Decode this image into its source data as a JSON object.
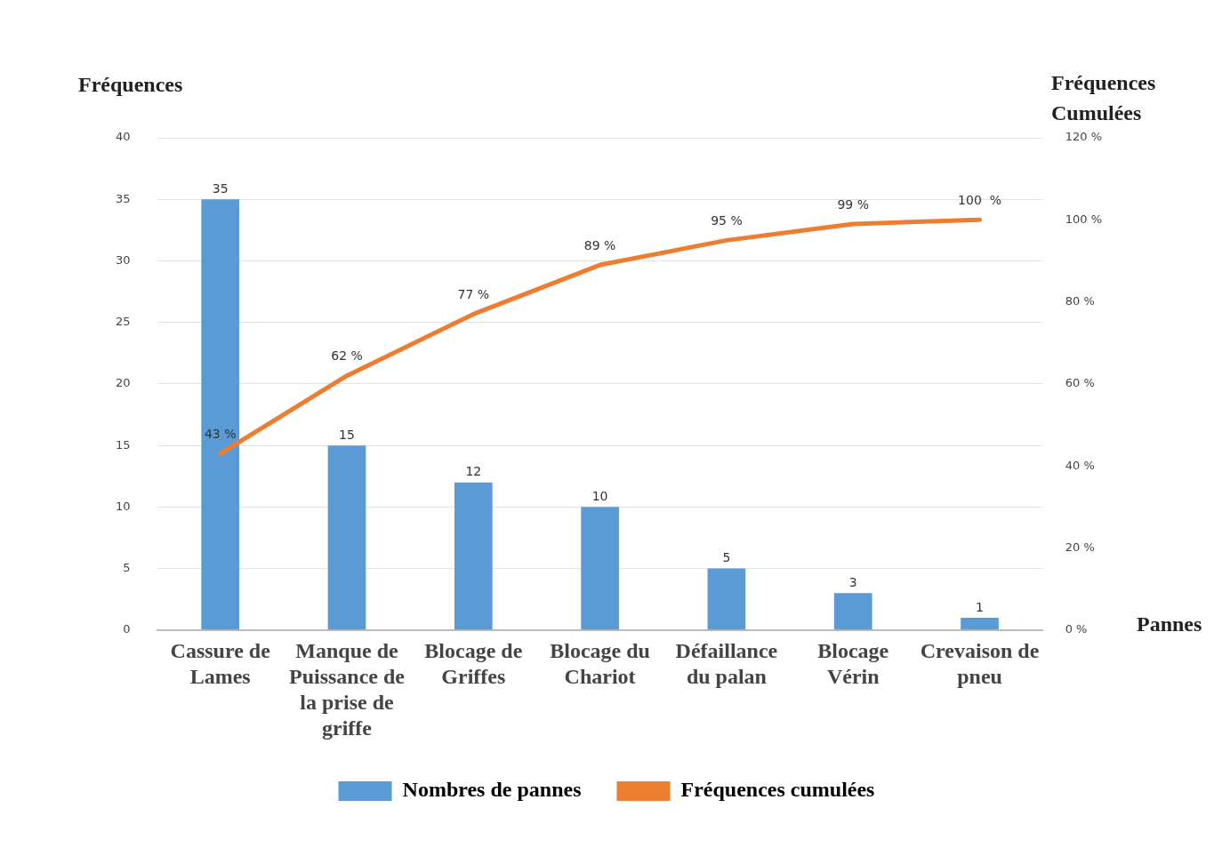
{
  "chart_data": {
    "type": "bar",
    "ylabel": "Fréquences",
    "y2label": "Fréquences Cumulées",
    "xlabel": "Pannes",
    "categories": [
      "Cassure de Lames",
      "Manque de Puissance de la prise de griffe",
      "Blocage de Griffes",
      "Blocage du Chariot",
      "Défaillance du palan",
      "Blocage Vérin",
      "Crevaison de pneu"
    ],
    "series": [
      {
        "name": "Nombres de pannes",
        "color": "#5b9bd5",
        "values": [
          35,
          15,
          12,
          10,
          5,
          3,
          1
        ],
        "value_labels": [
          "35",
          "15",
          "12",
          "10",
          "5",
          "3",
          "1"
        ]
      },
      {
        "name": "Fréquences cumulées",
        "type": "line",
        "axis": "y2",
        "color": "#ed7d31",
        "values": [
          43,
          62,
          77,
          89,
          95,
          99,
          100
        ],
        "value_labels": [
          "43 %",
          "62 %",
          "77 %",
          "89 %",
          "95 %",
          "99 %",
          "100  %"
        ]
      }
    ],
    "ylim": [
      0,
      40
    ],
    "yticks": [
      0,
      5,
      10,
      15,
      20,
      25,
      30,
      35,
      40
    ],
    "y2lim": [
      0,
      120
    ],
    "y2ticks": [
      {
        "value": 0,
        "label": "0 %"
      },
      {
        "value": 20,
        "label": "20 %"
      },
      {
        "value": 40,
        "label": "40 %"
      },
      {
        "value": 60,
        "label": "60 %"
      },
      {
        "value": 80,
        "label": "80 %"
      },
      {
        "value": 100,
        "label": "100 %"
      },
      {
        "value": 120,
        "label": "120 %"
      }
    ],
    "grid": "y",
    "legend": "bottom",
    "marker": "none",
    "line_style": "solid"
  }
}
